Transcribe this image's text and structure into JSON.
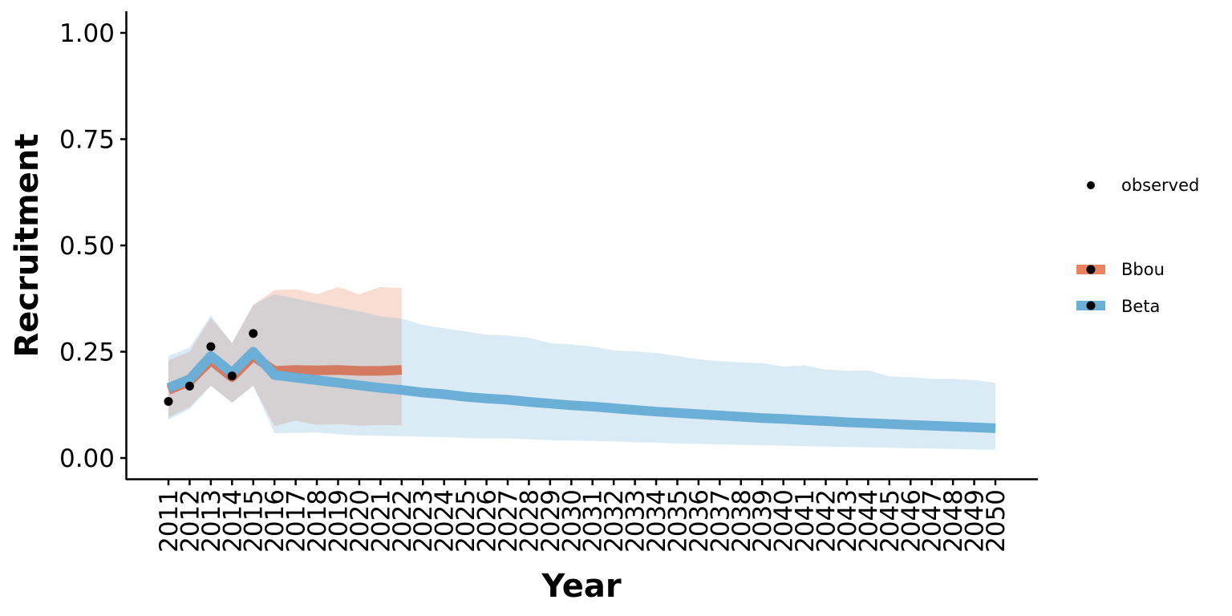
{
  "chart_data": {
    "type": "line",
    "xlabel": "Year",
    "ylabel": "Recruitment",
    "xlim": [
      2011,
      2050
    ],
    "ylim": [
      0,
      1
    ],
    "y_ticks": [
      "0.00",
      "0.25",
      "0.50",
      "0.75",
      "1.00"
    ],
    "grid": false,
    "legend": "right",
    "colors": {
      "Bbou": "#E8825F",
      "Beta": "#6BAED6",
      "observed": "#000000"
    },
    "observed": {
      "name": "observed",
      "x": [
        2011,
        2012,
        2013,
        2014,
        2015
      ],
      "y": [
        0.133,
        0.169,
        0.262,
        0.193,
        0.293
      ]
    },
    "series": [
      {
        "name": "Bbou",
        "x": [
          2011,
          2012,
          2013,
          2014,
          2015,
          2016,
          2017,
          2018,
          2019,
          2020,
          2021,
          2022
        ],
        "y": [
          0.16,
          0.18,
          0.23,
          0.19,
          0.24,
          0.205,
          0.207,
          0.206,
          0.207,
          0.205,
          0.205,
          0.207
        ],
        "lower": [
          0.095,
          0.12,
          0.17,
          0.13,
          0.17,
          0.075,
          0.088,
          0.078,
          0.08,
          0.076,
          0.078,
          0.077
        ],
        "upper": [
          0.23,
          0.25,
          0.33,
          0.27,
          0.36,
          0.395,
          0.397,
          0.385,
          0.402,
          0.385,
          0.402,
          0.4
        ]
      },
      {
        "name": "Beta",
        "x": [
          2011,
          2012,
          2013,
          2014,
          2015,
          2016,
          2017,
          2018,
          2019,
          2020,
          2021,
          2022,
          2023,
          2024,
          2025,
          2026,
          2027,
          2028,
          2029,
          2030,
          2031,
          2032,
          2033,
          2034,
          2035,
          2036,
          2037,
          2038,
          2039,
          2040,
          2041,
          2042,
          2043,
          2044,
          2045,
          2046,
          2047,
          2048,
          2049,
          2050
        ],
        "y": [
          0.165,
          0.185,
          0.24,
          0.2,
          0.25,
          0.195,
          0.189,
          0.183,
          0.177,
          0.171,
          0.165,
          0.16,
          0.154,
          0.15,
          0.144,
          0.14,
          0.137,
          0.132,
          0.128,
          0.124,
          0.121,
          0.117,
          0.113,
          0.109,
          0.106,
          0.103,
          0.1,
          0.097,
          0.094,
          0.092,
          0.089,
          0.087,
          0.084,
          0.082,
          0.08,
          0.078,
          0.076,
          0.074,
          0.072,
          0.07
        ],
        "lower": [
          0.09,
          0.115,
          0.17,
          0.13,
          0.17,
          0.058,
          0.059,
          0.06,
          0.056,
          0.053,
          0.052,
          0.051,
          0.05,
          0.049,
          0.047,
          0.046,
          0.046,
          0.044,
          0.042,
          0.041,
          0.04,
          0.039,
          0.037,
          0.036,
          0.034,
          0.033,
          0.032,
          0.031,
          0.03,
          0.029,
          0.028,
          0.027,
          0.026,
          0.025,
          0.024,
          0.023,
          0.022,
          0.021,
          0.02,
          0.019
        ],
        "upper": [
          0.24,
          0.26,
          0.335,
          0.27,
          0.36,
          0.385,
          0.375,
          0.365,
          0.355,
          0.345,
          0.333,
          0.328,
          0.313,
          0.305,
          0.298,
          0.29,
          0.288,
          0.283,
          0.27,
          0.267,
          0.262,
          0.253,
          0.251,
          0.247,
          0.24,
          0.232,
          0.228,
          0.225,
          0.223,
          0.215,
          0.218,
          0.208,
          0.205,
          0.206,
          0.192,
          0.19,
          0.186,
          0.186,
          0.183,
          0.177
        ]
      }
    ]
  }
}
